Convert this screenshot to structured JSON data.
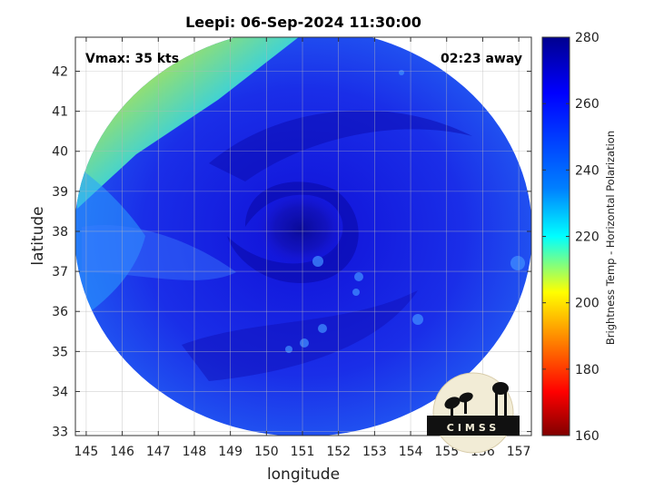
{
  "chart_data": {
    "type": "heatmap",
    "title": "Leepi: 06-Sep-2024 11:30:00",
    "xlabel": "longitude",
    "ylabel": "latitude",
    "x_ticks": [
      145,
      146,
      147,
      148,
      149,
      150,
      151,
      152,
      153,
      154,
      155,
      156,
      157
    ],
    "y_ticks": [
      33,
      34,
      35,
      36,
      37,
      38,
      39,
      40,
      41,
      42
    ],
    "xlim": [
      144.7,
      157.35
    ],
    "ylim": [
      32.9,
      42.85
    ],
    "grid": true,
    "annotations": {
      "vmax": "Vmax: 35 kts",
      "time_away": "02:23 away",
      "logo_text": "CIMSS"
    },
    "colorbar": {
      "label": "Brightness Temp - Horizontal Polarization",
      "ticks": [
        160,
        180,
        200,
        220,
        240,
        260,
        280
      ],
      "range": [
        160,
        280
      ],
      "colormap": "jet"
    },
    "swath": {
      "center": [
        151.0,
        37.9
      ],
      "typical_value": 262,
      "eye_center": [
        151.3,
        38.0
      ],
      "eye_value": 272,
      "warm_region": "north-west corner, min about 205",
      "cool_edge": "western edge about 245"
    },
    "colors": {
      "dark_red": "#800000",
      "red": "#ff0000",
      "yellow": "#ffff00",
      "cyan": "#00ffff",
      "blue": "#0000ff",
      "dark_blue": "#00008f"
    }
  }
}
